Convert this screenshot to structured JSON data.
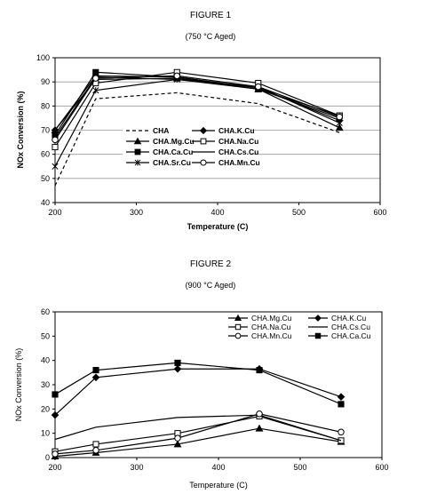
{
  "chart_data": [
    {
      "type": "line",
      "title": "FIGURE 1",
      "subtitle": "(750 °C Aged)",
      "xlabel": "Temperature (C)",
      "ylabel": "NOx Conversion (%)",
      "xlim": [
        200,
        600
      ],
      "ylim": [
        40,
        100
      ],
      "xticks": [
        200,
        300,
        400,
        500,
        600
      ],
      "yticks": [
        40,
        50,
        60,
        70,
        80,
        90,
        100
      ],
      "grid": true,
      "legend": "center",
      "series": [
        {
          "name": "CHA",
          "marker": "none",
          "dash": "dashed",
          "x": [
            200,
            250,
            350,
            450,
            550
          ],
          "y": [
            47,
            83,
            85.5,
            81,
            69
          ]
        },
        {
          "name": "CHA.Mg.Cu",
          "marker": "triangle",
          "dash": "solid",
          "x": [
            200,
            250,
            350,
            450,
            550
          ],
          "y": [
            70,
            91,
            91.5,
            87,
            71
          ]
        },
        {
          "name": "CHA.Ca.Cu",
          "marker": "square-filled",
          "dash": "solid",
          "x": [
            200,
            250,
            350,
            450,
            550
          ],
          "y": [
            68,
            94,
            92,
            87,
            76
          ]
        },
        {
          "name": "CHA.Sr.Cu",
          "marker": "star",
          "dash": "solid",
          "x": [
            200,
            250,
            350,
            450,
            550
          ],
          "y": [
            55,
            86.5,
            91,
            88,
            73
          ]
        },
        {
          "name": "CHA.K.Cu",
          "marker": "diamond-filled",
          "dash": "solid",
          "x": [
            200,
            250,
            350,
            450,
            550
          ],
          "y": [
            70,
            92.5,
            92,
            87.5,
            74
          ]
        },
        {
          "name": "CHA.Na.Cu",
          "marker": "square-open",
          "dash": "solid",
          "x": [
            200,
            250,
            350,
            450,
            550
          ],
          "y": [
            63,
            89.5,
            94,
            89.5,
            76
          ]
        },
        {
          "name": "CHA.Cs.Cu",
          "marker": "none",
          "dash": "solid",
          "x": [
            200,
            250,
            350,
            450,
            550
          ],
          "y": [
            67,
            92,
            91,
            87,
            75
          ]
        },
        {
          "name": "CHA.Mn.Cu",
          "marker": "circle-open",
          "dash": "solid",
          "x": [
            200,
            250,
            350,
            450,
            550
          ],
          "y": [
            66,
            91.5,
            92.5,
            88,
            75.5
          ]
        }
      ]
    },
    {
      "type": "line",
      "title": "FIGURE 2",
      "subtitle": "(900 °C Aged)",
      "xlabel": "Temperature (C)",
      "ylabel": "NOx Conversion (%)",
      "xlim": [
        200,
        600
      ],
      "ylim": [
        0,
        60
      ],
      "xticks": [
        200,
        300,
        400,
        500,
        600
      ],
      "yticks": [
        0,
        10,
        20,
        30,
        40,
        50,
        60
      ],
      "grid": false,
      "legend": "top",
      "series": [
        {
          "name": "CHA.Mg.Cu",
          "marker": "triangle",
          "dash": "solid",
          "x": [
            200,
            250,
            350,
            450,
            550
          ],
          "y": [
            0.5,
            2,
            5.5,
            12,
            6.5
          ]
        },
        {
          "name": "CHA.K.Cu",
          "marker": "diamond-filled",
          "dash": "solid",
          "x": [
            200,
            250,
            350,
            450,
            550
          ],
          "y": [
            17.5,
            33,
            36.5,
            36.5,
            25
          ]
        },
        {
          "name": "CHA.Na.Cu",
          "marker": "square-open",
          "dash": "solid",
          "x": [
            200,
            250,
            350,
            450,
            550
          ],
          "y": [
            2.5,
            5.5,
            10,
            17,
            7
          ]
        },
        {
          "name": "CHA.Cs.Cu",
          "marker": "none",
          "dash": "solid",
          "x": [
            200,
            250,
            350,
            450,
            550
          ],
          "y": [
            7.5,
            12.5,
            16.5,
            17.5,
            7
          ]
        },
        {
          "name": "CHA.Mn.Cu",
          "marker": "circle-open",
          "dash": "solid",
          "x": [
            200,
            250,
            350,
            450,
            550
          ],
          "y": [
            1.5,
            3,
            8,
            18,
            10.5
          ]
        },
        {
          "name": "CHA.Ca.Cu",
          "marker": "square-filled",
          "dash": "solid",
          "x": [
            200,
            250,
            350,
            450,
            550
          ],
          "y": [
            26,
            36,
            39,
            36,
            22
          ]
        }
      ]
    }
  ]
}
